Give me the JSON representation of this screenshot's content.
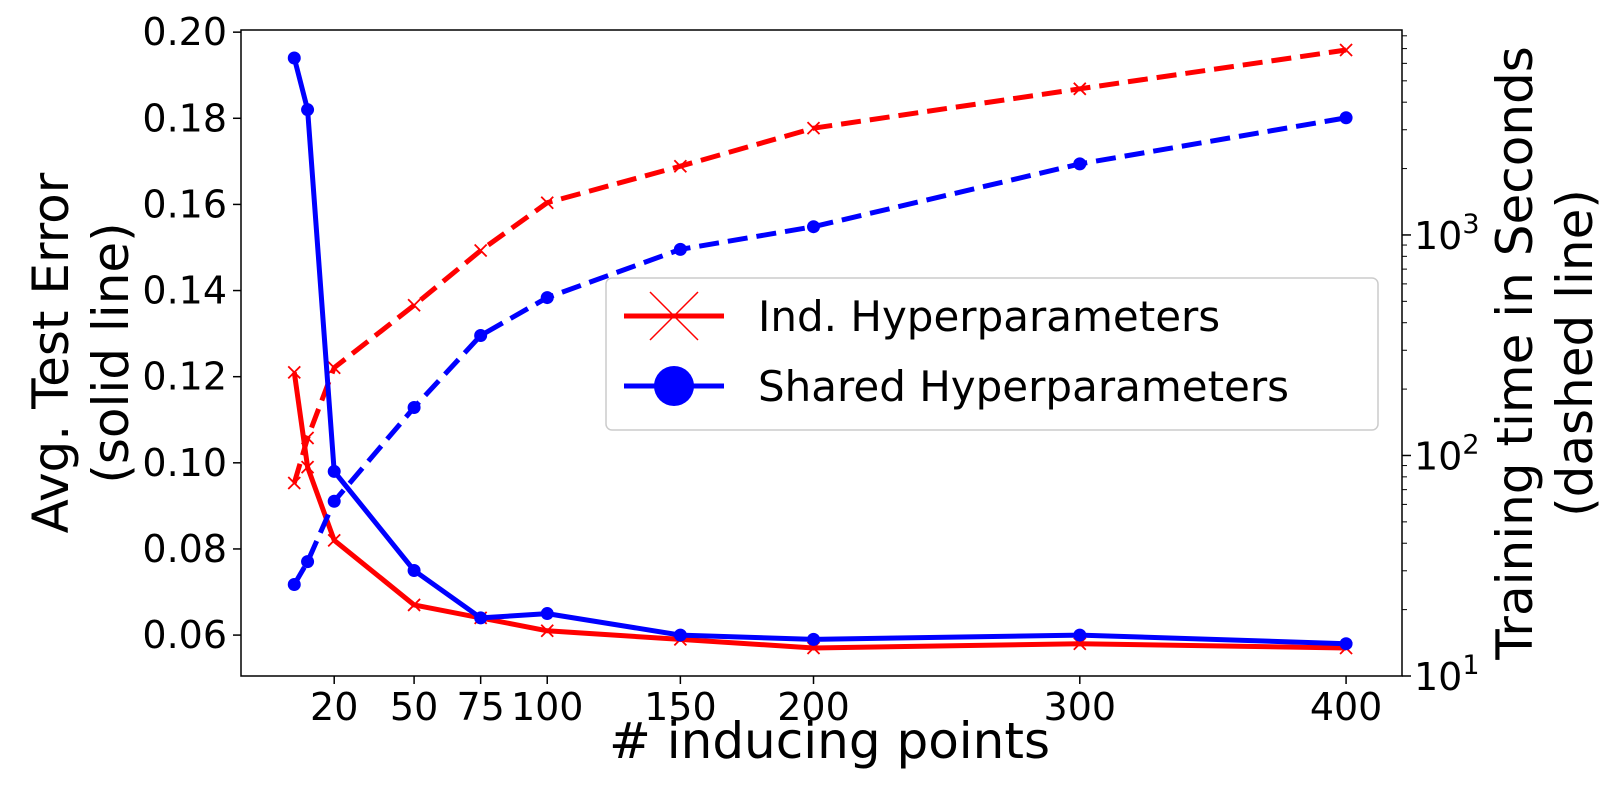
{
  "chart_data": {
    "type": "line",
    "title": "",
    "xlabel": "# inducing points",
    "ylabel_left": [
      "Avg. Test Error",
      "(solid line)"
    ],
    "ylabel_right": [
      "Training time in Seconds",
      "(dashed line)"
    ],
    "x_ticks": [
      20,
      50,
      75,
      100,
      150,
      200,
      300,
      400
    ],
    "xlim": [
      -15,
      421
    ],
    "ylim_left": [
      0.0505,
      0.2005
    ],
    "left_ticks": [
      "0.06",
      "0.08",
      "0.10",
      "0.12",
      "0.14",
      "0.16",
      "0.18",
      "0.20"
    ],
    "ylim_right": [
      10,
      8500
    ],
    "right_scale": "log",
    "right_ticks": [
      {
        "base": "10",
        "exp": "1",
        "value": 10
      },
      {
        "base": "10",
        "exp": "2",
        "value": 100
      },
      {
        "base": "10",
        "exp": "3",
        "value": 1000
      }
    ],
    "grid": false,
    "legend_position": "center-right",
    "series": [
      {
        "name": "Ind. Hyperparameters",
        "color": "#ff0000",
        "marker": "x",
        "x": [
          5,
          10,
          20,
          50,
          75,
          100,
          150,
          200,
          300,
          400
        ],
        "error": [
          0.121,
          0.099,
          0.082,
          0.067,
          0.064,
          0.061,
          0.059,
          0.057,
          0.058,
          0.057
        ],
        "time": [
          75,
          120,
          250,
          480,
          850,
          1400,
          2050,
          3050,
          4600,
          6900
        ]
      },
      {
        "name": "Shared Hyperparameters",
        "color": "#0000ff",
        "marker": "o",
        "x": [
          5,
          10,
          20,
          50,
          75,
          100,
          150,
          200,
          300,
          400
        ],
        "error": [
          0.194,
          0.182,
          0.098,
          0.075,
          0.064,
          0.065,
          0.06,
          0.059,
          0.06,
          0.058
        ],
        "time": [
          26,
          33,
          62,
          165,
          350,
          520,
          860,
          1090,
          2100,
          3400
        ]
      }
    ]
  }
}
